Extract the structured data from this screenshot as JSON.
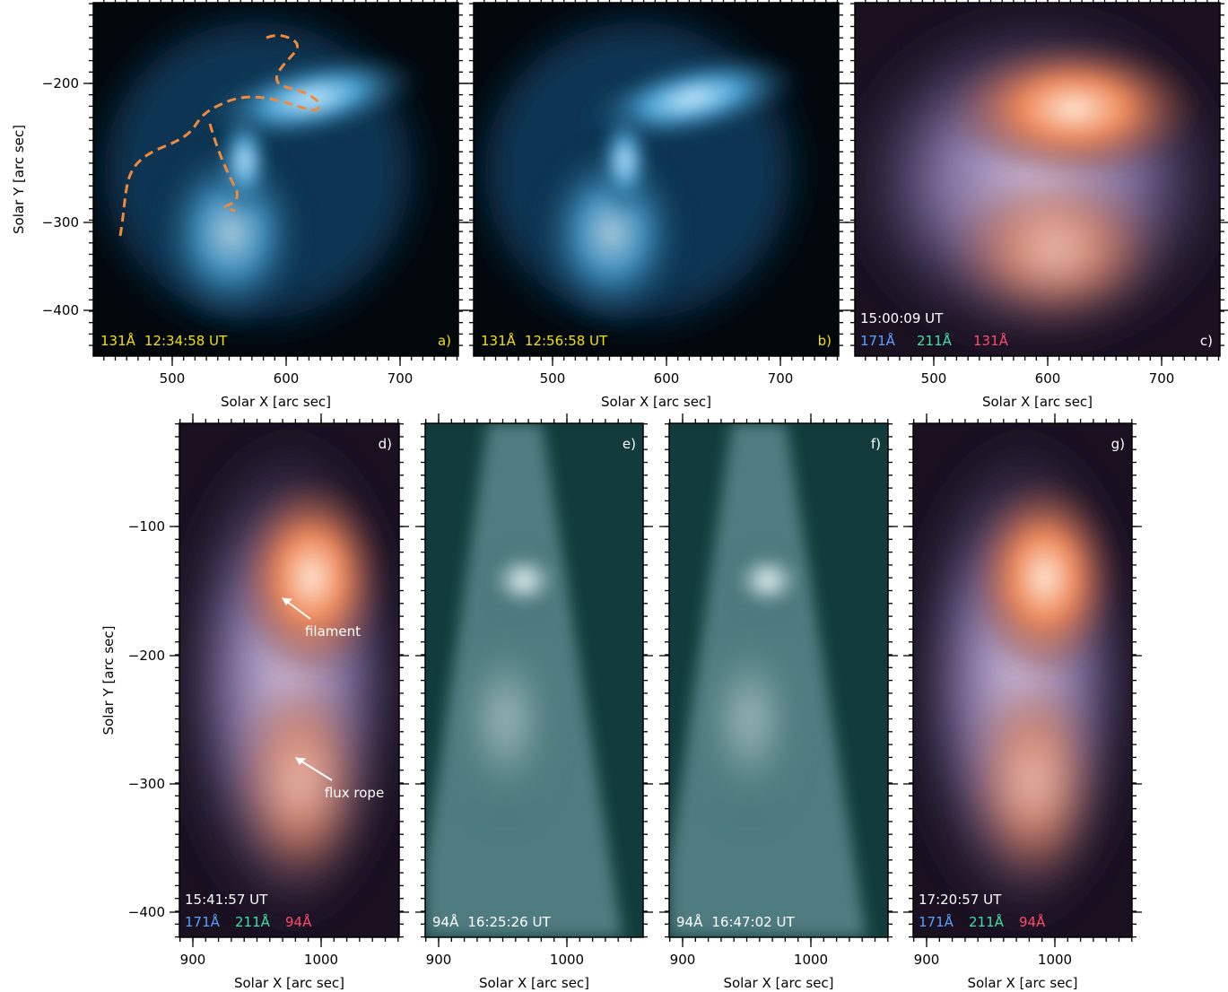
{
  "x_axis_label": "Solar X [arc sec]",
  "y_axis_label": "Solar Y [arc sec]",
  "top_row": {
    "xticks": [
      500,
      600,
      700
    ],
    "yticks": [
      {
        "value": -200,
        "label": "−200"
      },
      {
        "value": -300,
        "label": "−300"
      },
      {
        "value": -400,
        "label": "−400"
      }
    ]
  },
  "bottom_row": {
    "xticks": [
      900,
      1000
    ],
    "yticks": [
      {
        "value": -100,
        "label": "−100"
      },
      {
        "value": -200,
        "label": "−200"
      },
      {
        "value": -300,
        "label": "−300"
      },
      {
        "value": -400,
        "label": "−400"
      }
    ]
  },
  "panels": [
    {
      "label": "a)",
      "channel": "131Å",
      "time": "12:34:58 UT"
    },
    {
      "label": "b)",
      "channel": "131Å",
      "time": "12:56:58 UT"
    },
    {
      "label": "c)",
      "time": "15:00:09 UT",
      "channels": [
        "171Å",
        "211Å",
        "131Å"
      ]
    },
    {
      "label": "d)",
      "time": "15:41:57 UT",
      "channels": [
        "171Å",
        "211Å",
        "94Å"
      ],
      "annotations": [
        "filament",
        "flux rope"
      ]
    },
    {
      "label": "e)",
      "channel": "94Å",
      "time": "16:25:26 UT"
    },
    {
      "label": "f)",
      "channel": "94Å",
      "time": "16:47:02 UT"
    },
    {
      "label": "g)",
      "time": "17:20:57 UT",
      "channels": [
        "171Å",
        "211Å",
        "94Å"
      ]
    }
  ]
}
